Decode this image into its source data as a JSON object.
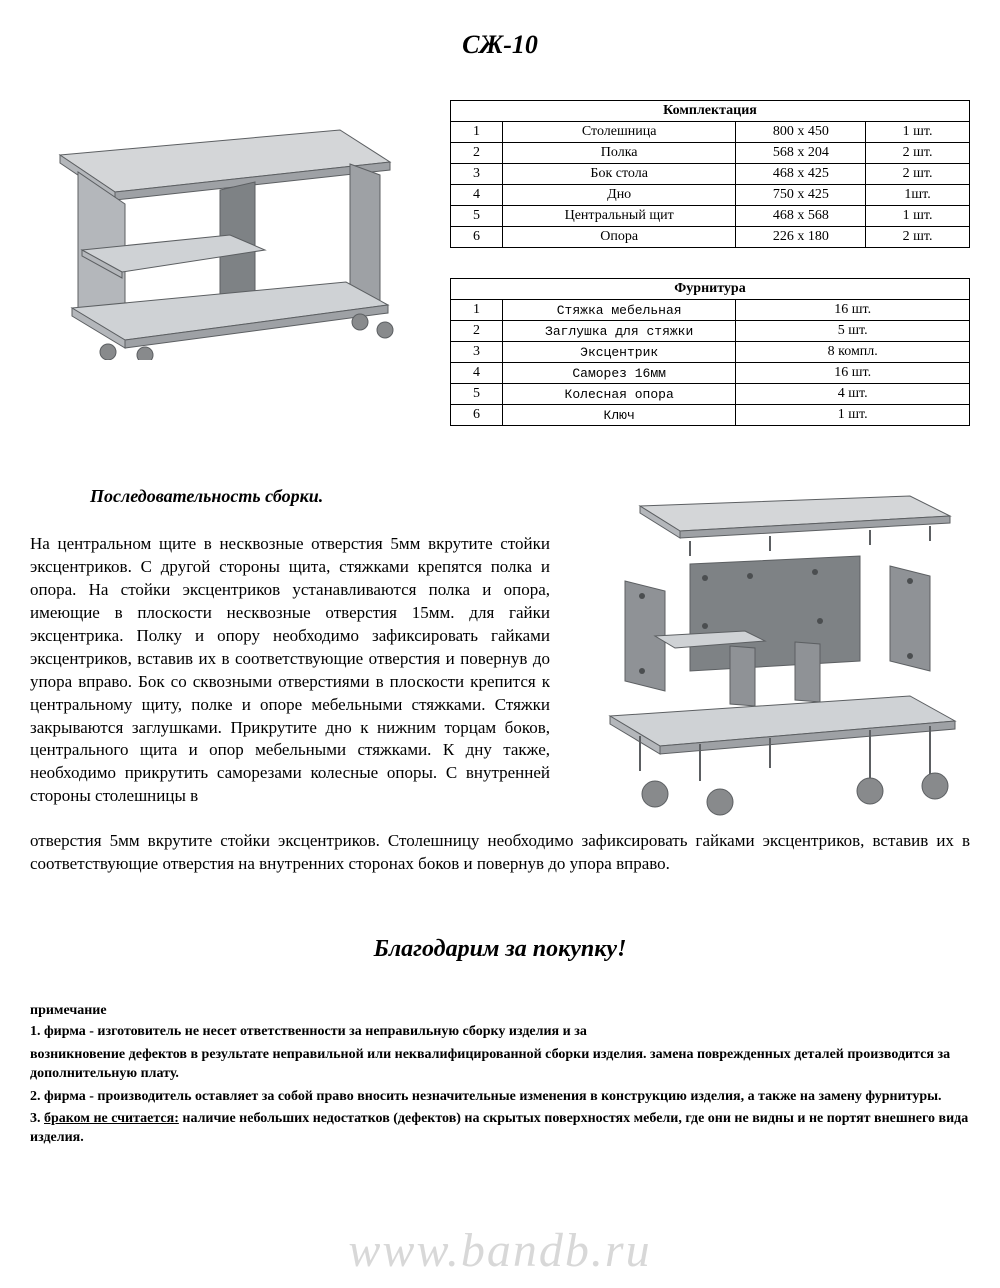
{
  "title": "СЖ-10",
  "parts_table": {
    "header": "Комплектация",
    "rows": [
      {
        "n": "1",
        "name": "Столешница",
        "size": "800 х 450",
        "qty": "1 шт."
      },
      {
        "n": "2",
        "name": "Полка",
        "size": "568 х 204",
        "qty": "2 шт."
      },
      {
        "n": "3",
        "name": "Бок стола",
        "size": "468 х 425",
        "qty": "2 шт."
      },
      {
        "n": "4",
        "name": "Дно",
        "size": "750 х 425",
        "qty": "1шт."
      },
      {
        "n": "5",
        "name": "Центральный щит",
        "size": "468 х 568",
        "qty": "1 шт."
      },
      {
        "n": "6",
        "name": "Опора",
        "size": "226 х 180",
        "qty": "2 шт."
      }
    ]
  },
  "hardware_table": {
    "header": "Фурнитура",
    "rows": [
      {
        "n": "1",
        "name": "Стяжка мебельная",
        "qty": "16 шт."
      },
      {
        "n": "2",
        "name": "Заглушка для стяжки",
        "qty": "5 шт."
      },
      {
        "n": "3",
        "name": "Эксцентрик",
        "qty": "8 компл."
      },
      {
        "n": "4",
        "name": "Саморез 16мм",
        "qty": "16 шт."
      },
      {
        "n": "5",
        "name": "Колесная опора",
        "qty": "4 шт."
      },
      {
        "n": "6",
        "name": "Ключ",
        "qty": "1 шт."
      }
    ]
  },
  "assembly": {
    "heading": "Последовательность сборки.",
    "text1": "На центральном щите в несквозные отверстия 5мм вкрутите стойки эксцентриков. С другой стороны щита, стяжками крепятся полка и опора. На стойки эксцентриков устанавливаются полка и опора, имеющие в плоскости несквозные отверстия 15мм. для гайки эксцентрика. Полку и опору необходимо зафиксировать гайками эксцентриков, вставив их в соответствующие отверстия и повернув до упора вправо. Бок со сквозными отверстиями в плоскости крепится к центральному щиту, полке и опоре мебельными стяжками. Стяжки закрываются заглушками. Прикрутите дно к нижним торцам боков, центрального щита и опор мебельными стяжками. К дну также, необходимо прикрутить саморезами колесные опоры. С внутренней стороны столешницы в",
    "text2": "отверстия 5мм вкрутите стойки эксцентриков. Столешницу необходимо зафиксировать гайками эксцентриков, вставив их в соответствующие отверстия на внутренних сторонах боков и повернув до упора вправо."
  },
  "thanks": "Благодарим за покупку!",
  "notes": {
    "heading": "примечание",
    "n1": "1.  фирма - изготовитель не несет ответственности за неправильную сборку изделия и за",
    "n1b": "возникновение дефектов в результате неправильной или неквалифицированной сборки изделия. замена поврежденных деталей производится за дополнительную плату.",
    "n2": "2.  фирма - производитель оставляет за собой право вносить незначительные изменения в конструкцию изделия, а также на замену фурнитуры.",
    "n3_prefix": "3.  ",
    "n3_underlined": "браком не считается:",
    "n3_rest": " наличие небольших недостатков (дефектов) на скрытых поверхностях   мебели, где они не видны и не портят внешнего вида изделия."
  },
  "watermark": "www.bandb.ru",
  "colors": {
    "text": "#000000",
    "bg": "#ffffff",
    "watermark": "#d8d8d8",
    "furniture_light": "#d4d6d8",
    "furniture_mid": "#b4b7bb",
    "furniture_dark": "#7e8285",
    "furniture_edge": "#5c5f62",
    "caster": "#888a8c"
  }
}
